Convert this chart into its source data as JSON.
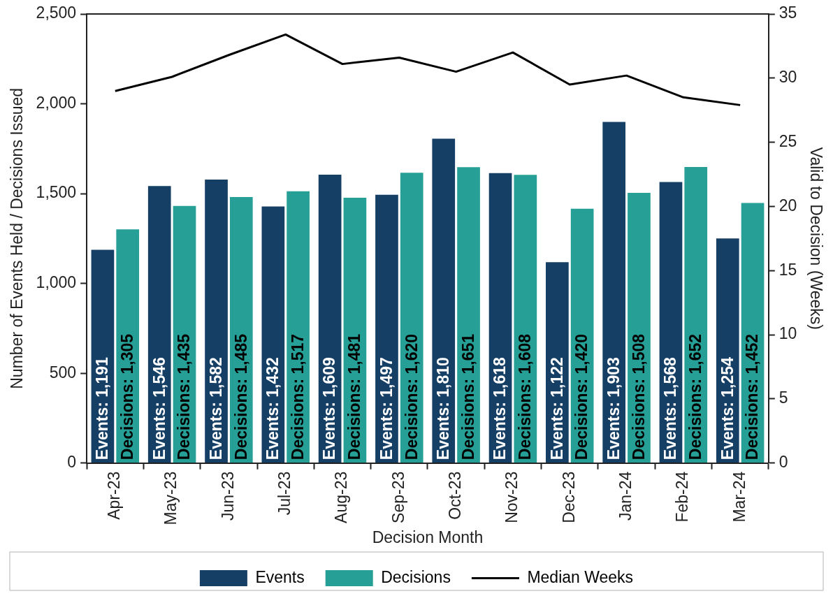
{
  "chart_data": {
    "type": "bar",
    "xlabel": "Decision Month",
    "ylabel": "Number of Events Held / Decisions Issued",
    "y2label": "Valid to Decision (Weeks)",
    "categories": [
      "Apr-23",
      "May-23",
      "Jun-23",
      "Jul-23",
      "Aug-23",
      "Sep-23",
      "Oct-23",
      "Nov-23",
      "Dec-23",
      "Jan-24",
      "Feb-24",
      "Mar-24"
    ],
    "series": [
      {
        "name": "Events",
        "color": "#163f66",
        "values": [
          1191,
          1546,
          1582,
          1432,
          1609,
          1497,
          1810,
          1618,
          1122,
          1903,
          1568,
          1254
        ],
        "value_labels": [
          "Events: 1,191",
          "Events: 1,546",
          "Events: 1,582",
          "Events: 1,432",
          "Events: 1,609",
          "Events: 1,497",
          "Events: 1,810",
          "Events: 1,618",
          "Events: 1,122",
          "Events: 1,903",
          "Events: 1,568",
          "Events: 1,254"
        ]
      },
      {
        "name": "Decisions",
        "color": "#26a096",
        "values": [
          1305,
          1435,
          1485,
          1517,
          1481,
          1620,
          1651,
          1608,
          1420,
          1508,
          1652,
          1452
        ],
        "value_labels": [
          "Decisions: 1,305",
          "Decisions: 1,435",
          "Decisions: 1,485",
          "Decisions: 1,517",
          "Decisions: 1,481",
          "Decisions: 1,620",
          "Decisions: 1,651",
          "Decisions: 1,608",
          "Decisions: 1,420",
          "Decisions: 1,508",
          "Decisions: 1,652",
          "Decisions: 1,452"
        ]
      },
      {
        "name": "Median Weeks",
        "type": "line",
        "axis": "y2",
        "color": "#000000",
        "values": [
          29.0,
          30.1,
          31.8,
          33.4,
          31.1,
          31.6,
          30.5,
          32.0,
          29.5,
          30.2,
          28.5,
          27.9
        ]
      }
    ],
    "ylim": [
      0,
      2500
    ],
    "yticks": [
      0,
      500,
      {
        "value": 1000,
        "label": "1,000"
      },
      {
        "value": 1500,
        "label": "1,500"
      },
      {
        "value": 2000,
        "label": "2,000"
      },
      {
        "value": 2500,
        "label": "2,500"
      }
    ],
    "y2lim": [
      0,
      35
    ],
    "y2ticks": [
      0,
      5,
      10,
      15,
      20,
      25,
      30,
      35
    ],
    "grid": false,
    "legend": "bottom",
    "marker": "none",
    "line_style": "solid"
  }
}
